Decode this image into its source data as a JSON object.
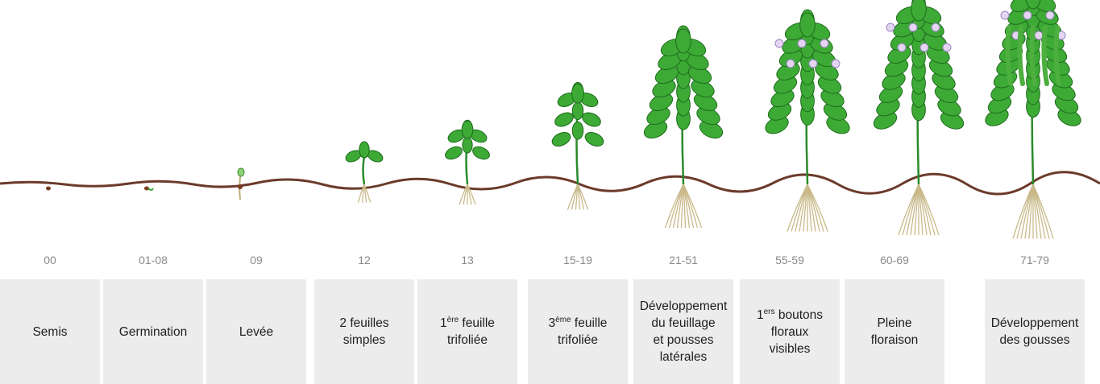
{
  "stages": [
    {
      "code": "00",
      "label_lines": [
        "Semis"
      ]
    },
    {
      "code": "01-08",
      "label_lines": [
        "Germination"
      ]
    },
    {
      "code": "09",
      "label_lines": [
        "Levée"
      ]
    },
    {
      "code": "12",
      "label_lines": [
        "2 feuilles",
        "simples"
      ]
    },
    {
      "code": "13",
      "label_lines": [
        {
          "base": "1",
          "sup": "ère",
          "text": " feuille"
        },
        "trifoliée"
      ]
    },
    {
      "code": "15-19",
      "label_lines": [
        {
          "base": "3",
          "sup": "ème",
          "text": " feuille"
        },
        "trifoliée"
      ]
    },
    {
      "code": "21-51",
      "label_lines": [
        "Développement",
        "du feuillage",
        "et pousses",
        "latérales"
      ]
    },
    {
      "code": "55-59",
      "label_lines": [
        {
          "base": "1",
          "sup": "ers",
          "text": " boutons"
        },
        "floraux",
        "visibles"
      ]
    },
    {
      "code": "60-69",
      "label_lines": [
        "Pleine",
        "floraison"
      ]
    },
    {
      "code": "71-79",
      "label_lines": [
        "Développement",
        "des gousses"
      ]
    }
  ]
}
